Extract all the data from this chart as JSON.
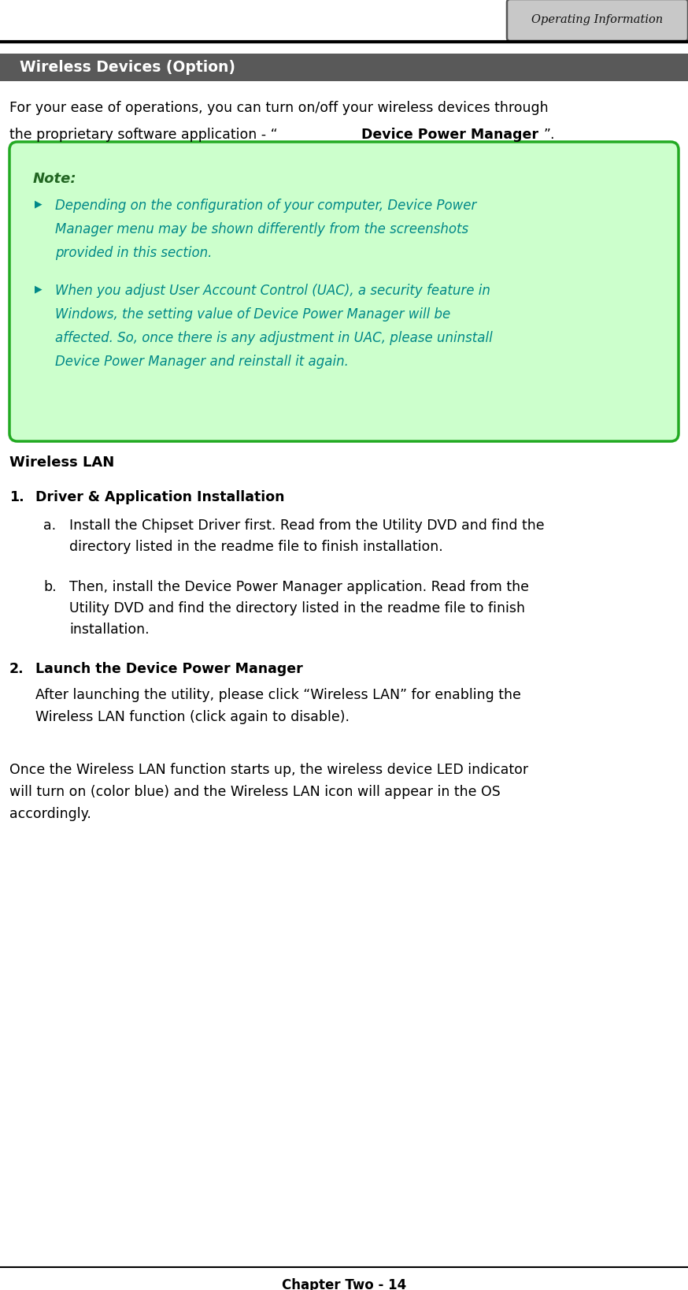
{
  "page_width": 8.74,
  "page_height": 16.37,
  "dpi": 100,
  "bg_color": "#ffffff",
  "header_tab_text": "Operating Information",
  "header_tab_bg": "#c8c8c8",
  "header_tab_border": "#555555",
  "header_line_color": "#000000",
  "section_banner_text": "  Wireless Devices (Option)",
  "section_banner_bg": "#595959",
  "section_banner_text_color": "#ffffff",
  "note_box_bg": "#ccffcc",
  "note_box_border": "#22aa22",
  "note_title": "Note:",
  "note_title_color": "#226622",
  "note_bullet_color": "#008888",
  "wireless_lan_title": "Wireless LAN",
  "footer_text": "Chapter Two - 14",
  "text_color": "#000000"
}
